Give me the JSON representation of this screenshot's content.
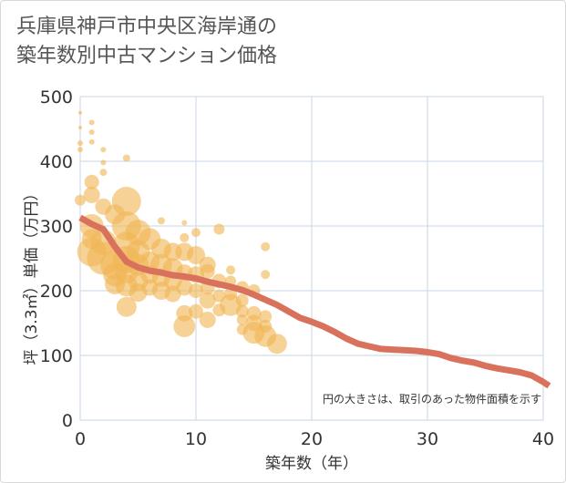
{
  "chart_data": {
    "type": "scatter",
    "title_line1": "兵庫県神戸市中央区海岸通の",
    "title_line2": "築年数別中古マンション価格",
    "xlabel": "築年数（年）",
    "ylabel": "坪（3.3㎡）単価（万円）",
    "note": "円の大きさは、取引のあった物件面積を示す",
    "xlim": [
      0,
      40
    ],
    "ylim": [
      0,
      500
    ],
    "xticks": [
      "0",
      "10",
      "20",
      "30",
      "40"
    ],
    "yticks": [
      "0",
      "100",
      "200",
      "300",
      "400",
      "500"
    ],
    "colors": {
      "bubble": "#f0b656",
      "trend": "#d9725c",
      "grid": "#c9d5e3"
    },
    "bubbles": [
      [
        0,
        475,
        2
      ],
      [
        0,
        452,
        2
      ],
      [
        0,
        428,
        3
      ],
      [
        0,
        418,
        3
      ],
      [
        1,
        460,
        3
      ],
      [
        1,
        445,
        3
      ],
      [
        1,
        430,
        3
      ],
      [
        2,
        418,
        3
      ],
      [
        2,
        398,
        3
      ],
      [
        2,
        383,
        4
      ],
      [
        4,
        405,
        4
      ],
      [
        1,
        368,
        8
      ],
      [
        1,
        348,
        9
      ],
      [
        0,
        340,
        6
      ],
      [
        2,
        330,
        9
      ],
      [
        3,
        318,
        11
      ],
      [
        4,
        338,
        16
      ],
      [
        1,
        300,
        13
      ],
      [
        1,
        280,
        11
      ],
      [
        1,
        260,
        16
      ],
      [
        2,
        275,
        14
      ],
      [
        2,
        250,
        18
      ],
      [
        3,
        240,
        16
      ],
      [
        3,
        225,
        13
      ],
      [
        3,
        210,
        11
      ],
      [
        4,
        300,
        16
      ],
      [
        4,
        270,
        15
      ],
      [
        4,
        248,
        15
      ],
      [
        4,
        230,
        13
      ],
      [
        4,
        208,
        12
      ],
      [
        4,
        175,
        11
      ],
      [
        5,
        290,
        14
      ],
      [
        5,
        260,
        13
      ],
      [
        5,
        240,
        12
      ],
      [
        5,
        215,
        11
      ],
      [
        5,
        197,
        10
      ],
      [
        6,
        280,
        12
      ],
      [
        6,
        245,
        11
      ],
      [
        6,
        225,
        10
      ],
      [
        6,
        205,
        9
      ],
      [
        7,
        308,
        4
      ],
      [
        7,
        265,
        11
      ],
      [
        7,
        240,
        12
      ],
      [
        7,
        220,
        10
      ],
      [
        7,
        200,
        10
      ],
      [
        8,
        260,
        10
      ],
      [
        8,
        235,
        11
      ],
      [
        8,
        215,
        10
      ],
      [
        8,
        195,
        9
      ],
      [
        9,
        305,
        3
      ],
      [
        9,
        282,
        5
      ],
      [
        9,
        260,
        10
      ],
      [
        9,
        228,
        9
      ],
      [
        9,
        205,
        9
      ],
      [
        9,
        165,
        9
      ],
      [
        9,
        145,
        12
      ],
      [
        10,
        290,
        5
      ],
      [
        10,
        255,
        10
      ],
      [
        10,
        225,
        9
      ],
      [
        10,
        200,
        8
      ],
      [
        10,
        168,
        8
      ],
      [
        11,
        240,
        9
      ],
      [
        11,
        230,
        8
      ],
      [
        11,
        205,
        8
      ],
      [
        11,
        185,
        9
      ],
      [
        11,
        155,
        9
      ],
      [
        12,
        295,
        6
      ],
      [
        12,
        215,
        8
      ],
      [
        12,
        192,
        7
      ],
      [
        12,
        170,
        7
      ],
      [
        13,
        232,
        5
      ],
      [
        13,
        215,
        6
      ],
      [
        13,
        195,
        7
      ],
      [
        13,
        178,
        12
      ],
      [
        14,
        205,
        7
      ],
      [
        14,
        185,
        7
      ],
      [
        14,
        168,
        7
      ],
      [
        14,
        155,
        6
      ],
      [
        14,
        140,
        6
      ],
      [
        15,
        200,
        7
      ],
      [
        15,
        165,
        8
      ],
      [
        15,
        150,
        9
      ],
      [
        15,
        135,
        12
      ],
      [
        16,
        268,
        5
      ],
      [
        16,
        225,
        5
      ],
      [
        16,
        160,
        7
      ],
      [
        16,
        145,
        7
      ],
      [
        16,
        130,
        12
      ],
      [
        17,
        118,
        11
      ]
    ],
    "trend": [
      [
        0,
        313
      ],
      [
        1,
        303
      ],
      [
        2,
        295
      ],
      [
        3,
        268
      ],
      [
        4,
        245
      ],
      [
        5,
        236
      ],
      [
        6,
        231
      ],
      [
        7,
        228
      ],
      [
        8,
        224
      ],
      [
        9,
        222
      ],
      [
        10,
        219
      ],
      [
        11,
        214
      ],
      [
        12,
        210
      ],
      [
        13,
        206
      ],
      [
        14,
        201
      ],
      [
        15,
        194
      ],
      [
        16,
        186
      ],
      [
        17,
        178
      ],
      [
        18,
        168
      ],
      [
        19,
        158
      ],
      [
        20,
        152
      ],
      [
        21,
        145
      ],
      [
        22,
        136
      ],
      [
        23,
        126
      ],
      [
        24,
        118
      ],
      [
        25,
        114
      ],
      [
        26,
        110
      ],
      [
        27,
        109
      ],
      [
        28,
        108
      ],
      [
        29,
        107
      ],
      [
        30,
        105
      ],
      [
        31,
        102
      ],
      [
        32,
        96
      ],
      [
        33,
        92
      ],
      [
        34,
        89
      ],
      [
        35,
        84
      ],
      [
        36,
        80
      ],
      [
        37,
        77
      ],
      [
        38,
        74
      ],
      [
        39,
        69
      ],
      [
        40,
        59
      ],
      [
        40.5,
        53
      ]
    ]
  }
}
